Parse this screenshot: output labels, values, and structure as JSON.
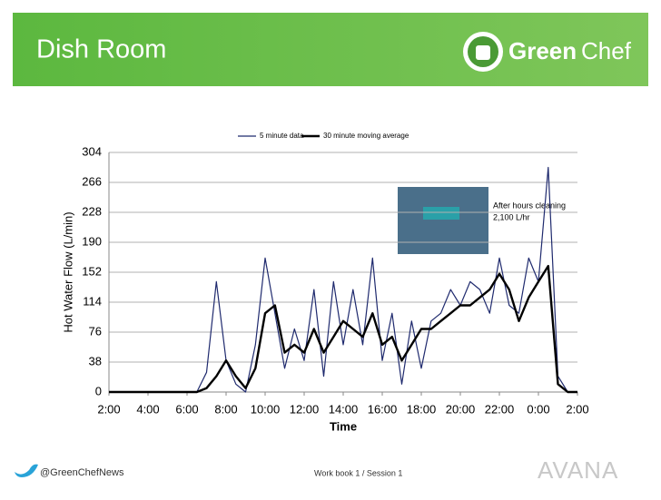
{
  "header": {
    "title": "Dish Room",
    "logo": [
      "Green",
      "Chef"
    ]
  },
  "footer": {
    "twitter": "@GreenChefNews",
    "session": "Work book 1 / Session 1",
    "brand": "AVANA"
  },
  "chart_data": {
    "type": "line",
    "xlabel": "Time",
    "ylabel": "Hot Water Flow (L/min)",
    "x": [
      2,
      2.5,
      3,
      3.5,
      4,
      4.5,
      5,
      5.5,
      6,
      6.5,
      7,
      7.5,
      8,
      8.5,
      9,
      9.5,
      10,
      10.5,
      11,
      11.5,
      12,
      12.5,
      13,
      13.5,
      14,
      14.5,
      15,
      15.5,
      16,
      16.5,
      17,
      17.5,
      18,
      18.5,
      19,
      19.5,
      20,
      20.5,
      21,
      21.5,
      22,
      22.5,
      23,
      23.5,
      24,
      24.5,
      25,
      25.5,
      26
    ],
    "series": [
      {
        "name": "5 minute data",
        "color": "#1f2a6e",
        "width": 1.2,
        "values": [
          0,
          0,
          0,
          0,
          0,
          0,
          0,
          0,
          0,
          0,
          25,
          140,
          40,
          10,
          0,
          60,
          170,
          100,
          30,
          80,
          40,
          130,
          20,
          140,
          60,
          130,
          60,
          170,
          40,
          100,
          10,
          90,
          30,
          90,
          100,
          130,
          110,
          140,
          130,
          100,
          170,
          110,
          100,
          170,
          140,
          285,
          20,
          0,
          0
        ]
      },
      {
        "name": "30 minute moving average",
        "color": "#000000",
        "width": 2.4,
        "values": [
          0,
          0,
          0,
          0,
          0,
          0,
          0,
          0,
          0,
          0,
          5,
          20,
          40,
          20,
          5,
          30,
          100,
          110,
          50,
          60,
          50,
          80,
          50,
          70,
          90,
          80,
          70,
          100,
          60,
          70,
          40,
          60,
          80,
          80,
          90,
          100,
          110,
          110,
          120,
          130,
          150,
          130,
          90,
          120,
          140,
          160,
          10,
          0,
          0
        ]
      }
    ],
    "xlim": [
      2,
      26
    ],
    "xticks": [
      {
        "value": 2,
        "label": "2:00"
      },
      {
        "value": 4,
        "label": "4:00"
      },
      {
        "value": 6,
        "label": "6:00"
      },
      {
        "value": 8,
        "label": "8:00"
      },
      {
        "value": 10,
        "label": "10:00"
      },
      {
        "value": 12,
        "label": "12:00"
      },
      {
        "value": 14,
        "label": "14:00"
      },
      {
        "value": 16,
        "label": "16:00"
      },
      {
        "value": 18,
        "label": "18:00"
      },
      {
        "value": 20,
        "label": "20:00"
      },
      {
        "value": 22,
        "label": "22:00"
      },
      {
        "value": 24,
        "label": "0:00"
      },
      {
        "value": 26,
        "label": "2:00"
      }
    ],
    "ylim": [
      0,
      304
    ],
    "yticks": [
      0,
      38,
      76,
      114,
      152,
      190,
      228,
      266,
      304
    ],
    "grid": true,
    "annotation": [
      "After hours cleaning",
      "2,100 L/hr"
    ]
  }
}
